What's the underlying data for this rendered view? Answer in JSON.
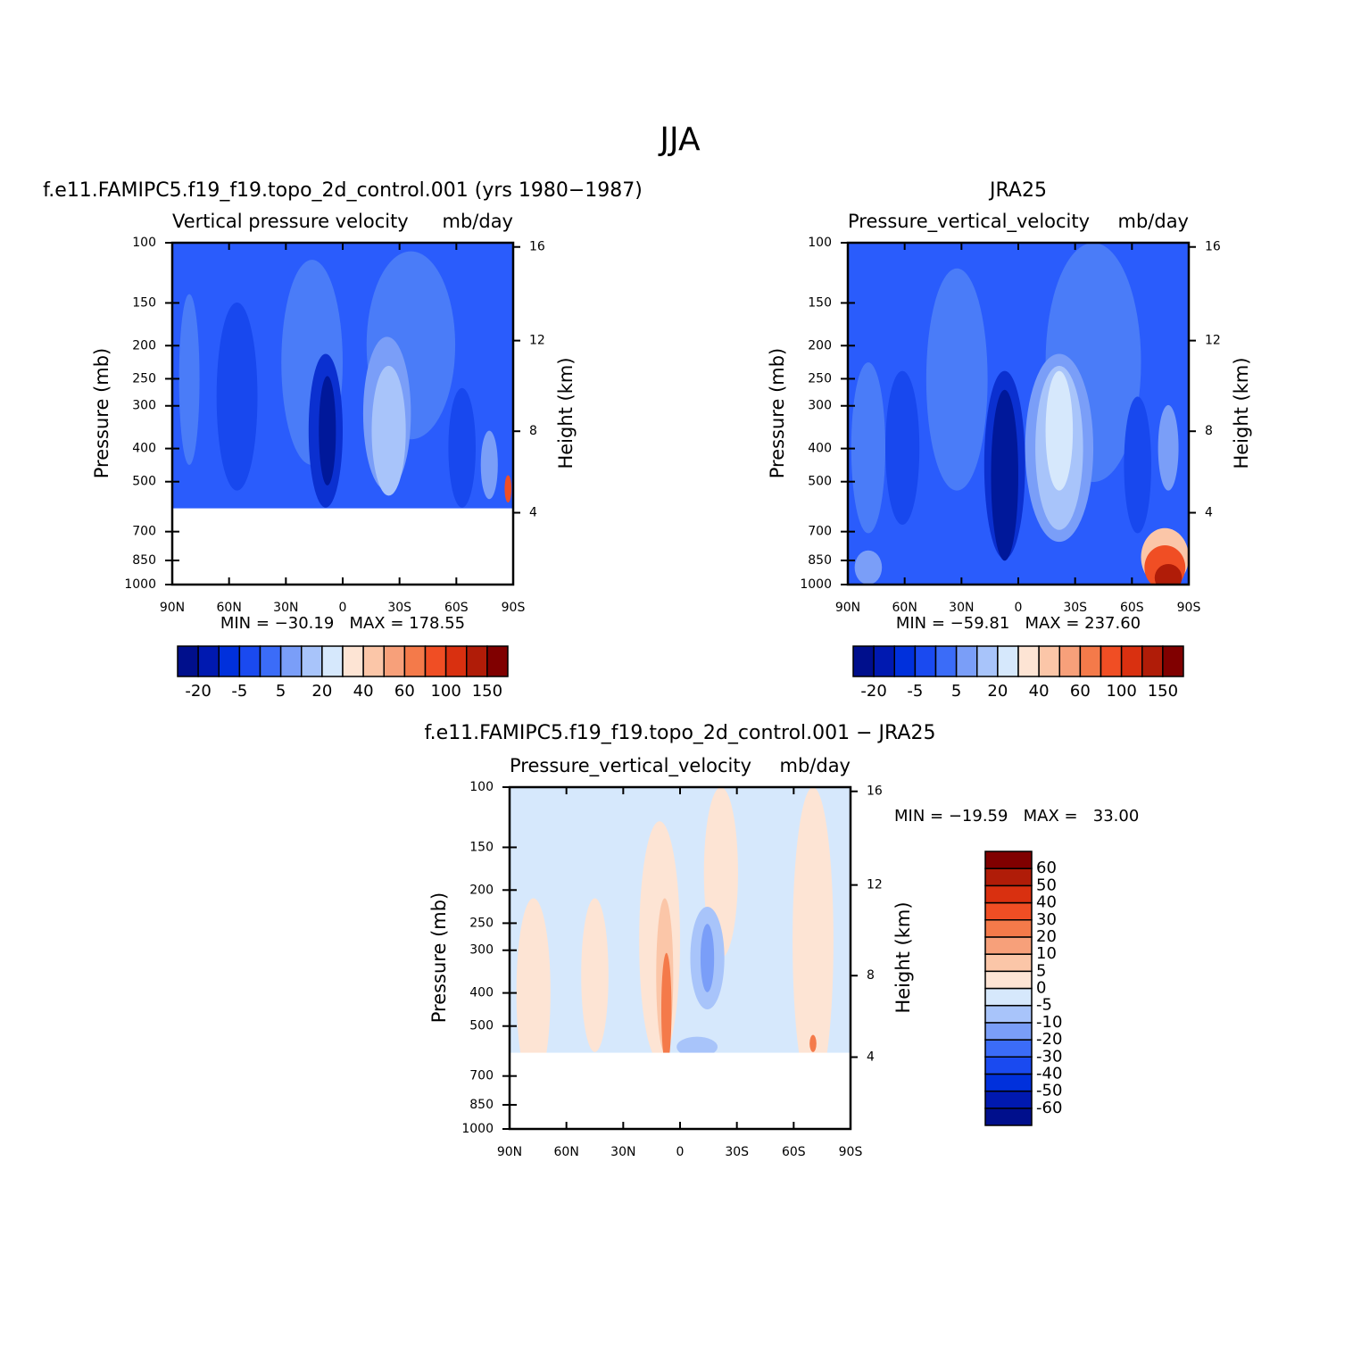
{
  "title": "JJA",
  "chart_data": [
    {
      "type": "contour",
      "title": "f.e11.FAMIPC5.f19_f19.topo_2d_control.001 (yrs 1980−1987)",
      "subtitle": "Vertical pressure velocity",
      "units": "mb/day",
      "ylabel": "Pressure (mb)",
      "y2label": "Height (km)",
      "yscale": "log",
      "xlim": [
        90,
        -90
      ],
      "xticks": [
        {
          "value": 90,
          "label": "90N"
        },
        {
          "value": 60,
          "label": "60N"
        },
        {
          "value": 30,
          "label": "30N"
        },
        0,
        {
          "value": -30,
          "label": "30S"
        },
        {
          "value": -60,
          "label": "60S"
        },
        {
          "value": -90,
          "label": "90S"
        }
      ],
      "ylim": [
        1000,
        100
      ],
      "yticks": [
        100,
        150,
        200,
        250,
        300,
        400,
        500,
        700,
        850,
        1000
      ],
      "y2ticks": [
        16,
        12,
        8,
        4
      ],
      "stats": "MIN = −30.19   MAX = 178.55",
      "colorbar": {
        "orientation": "horizontal",
        "colors": [
          "#000f8c",
          "#0019b0",
          "#0030dc",
          "#1a4af0",
          "#3b6cf8",
          "#7a9ef8",
          "#a8c4fa",
          "#d6e8fc",
          "#fde4d4",
          "#fbc6a8",
          "#f7a07a",
          "#f47a4a",
          "#f04e24",
          "#d93010",
          "#b01c08",
          "#800000"
        ],
        "labels": [
          -20,
          -5,
          5,
          20,
          40,
          60,
          100,
          150
        ]
      }
    },
    {
      "type": "contour",
      "title": "JRA25",
      "subtitle": "Pressure_vertical_velocity",
      "units": "mb/day",
      "ylabel": "Pressure (mb)",
      "y2label": "Height (km)",
      "yscale": "log",
      "xlim": [
        90,
        -90
      ],
      "xticks": [
        {
          "value": 90,
          "label": "90N"
        },
        {
          "value": 60,
          "label": "60N"
        },
        {
          "value": 30,
          "label": "30N"
        },
        0,
        {
          "value": -30,
          "label": "30S"
        },
        {
          "value": -60,
          "label": "60S"
        },
        {
          "value": -90,
          "label": "90S"
        }
      ],
      "ylim": [
        1000,
        100
      ],
      "yticks": [
        100,
        150,
        200,
        250,
        300,
        400,
        500,
        700,
        850,
        1000
      ],
      "y2ticks": [
        16,
        12,
        8,
        4
      ],
      "stats": "MIN = −59.81   MAX = 237.60",
      "colorbar": {
        "orientation": "horizontal",
        "colors": [
          "#000f8c",
          "#0019b0",
          "#0030dc",
          "#1a4af0",
          "#3b6cf8",
          "#7a9ef8",
          "#a8c4fa",
          "#d6e8fc",
          "#fde4d4",
          "#fbc6a8",
          "#f7a07a",
          "#f47a4a",
          "#f04e24",
          "#d93010",
          "#b01c08",
          "#800000"
        ],
        "labels": [
          -20,
          -5,
          5,
          20,
          40,
          60,
          100,
          150
        ]
      }
    },
    {
      "type": "contour",
      "title": "f.e11.FAMIPC5.f19_f19.topo_2d_control.001 − JRA25",
      "subtitle": "Pressure_vertical_velocity",
      "units": "mb/day",
      "ylabel": "Pressure (mb)",
      "y2label": "Height (km)",
      "yscale": "log",
      "xlim": [
        90,
        -90
      ],
      "xticks": [
        {
          "value": 90,
          "label": "90N"
        },
        {
          "value": 60,
          "label": "60N"
        },
        {
          "value": 30,
          "label": "30N"
        },
        0,
        {
          "value": -30,
          "label": "30S"
        },
        {
          "value": -60,
          "label": "60S"
        },
        {
          "value": -90,
          "label": "90S"
        }
      ],
      "ylim": [
        1000,
        100
      ],
      "yticks": [
        100,
        150,
        200,
        250,
        300,
        400,
        500,
        700,
        850,
        1000
      ],
      "y2ticks": [
        16,
        12,
        8,
        4
      ],
      "stats": "MIN = −19.59   MAX =   33.00",
      "colorbar": {
        "orientation": "vertical",
        "colors": [
          "#000f8c",
          "#0019b0",
          "#0030dc",
          "#1a4af0",
          "#3b6cf8",
          "#7a9ef8",
          "#a8c4fa",
          "#d6e8fc",
          "#fde4d4",
          "#fbc6a8",
          "#f7a07a",
          "#f47a4a",
          "#f04e24",
          "#d93010",
          "#b01c08",
          "#800000"
        ],
        "labels": [
          -60,
          -50,
          -40,
          -30,
          -20,
          -10,
          -5,
          0,
          5,
          10,
          20,
          30,
          40,
          50,
          60
        ]
      }
    }
  ]
}
